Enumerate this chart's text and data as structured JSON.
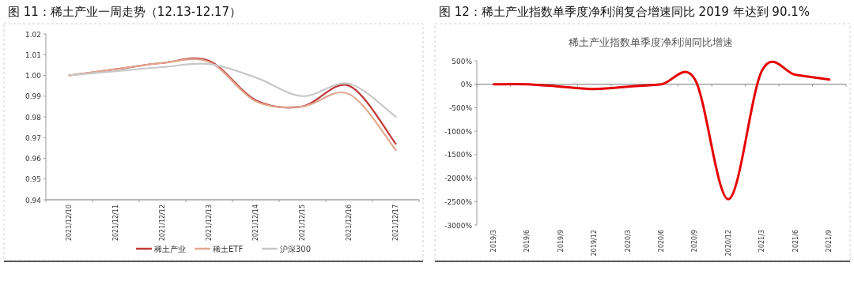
{
  "chart_data": [
    {
      "type": "line",
      "title": "图 11：稀土产业一周走势（12.13-12.17）",
      "categories": [
        "2021/12/10",
        "2021/12/11",
        "2021/12/12",
        "2021/12/13",
        "2021/12/14",
        "2021/12/15",
        "2021/12/16",
        "2021/12/17"
      ],
      "series": [
        {
          "name": "稀土产业",
          "color": "#c0393b",
          "values": [
            1.0,
            1.003,
            1.006,
            1.007,
            0.988,
            0.985,
            0.995,
            0.967
          ]
        },
        {
          "name": "稀土ETF",
          "color": "#e0a890",
          "values": [
            1.0,
            1.003,
            1.006,
            1.0065,
            0.9875,
            0.985,
            0.991,
            0.964
          ]
        },
        {
          "name": "沪深300",
          "color": "#c8c8c8",
          "values": [
            1.0,
            1.002,
            1.004,
            1.0055,
            0.999,
            0.99,
            0.996,
            0.98
          ]
        }
      ],
      "ylim": [
        0.94,
        1.02
      ],
      "yticks": [
        0.94,
        0.95,
        0.96,
        0.97,
        0.98,
        0.99,
        {
          "value": 1.0,
          "label": "1.00"
        },
        1.01,
        1.02
      ],
      "legend": "bottom",
      "grid": false
    },
    {
      "type": "line",
      "title": "图 12：稀土产业指数单季度净利润复合增速同比 2019 年达到 90.1%",
      "subtitle": "稀土产业指数单季度净利润同比增速",
      "categories": [
        "2019/3",
        "2019/6",
        "2019/9",
        "2019/12",
        "2020/3",
        "2020/6",
        "2020/9",
        "2020/12",
        "2021/3",
        "2021/6",
        "2021/9"
      ],
      "series": [
        {
          "color": "#e60000",
          "values": [
            0,
            0,
            -50,
            -100,
            -50,
            0,
            100,
            -2450,
            300,
            200,
            100
          ]
        }
      ],
      "ylim": [
        -3000,
        500
      ],
      "yticks": [
        {
          "value": -3000,
          "label": "-3000%"
        },
        {
          "value": -2500,
          "label": "-2500%"
        },
        {
          "value": -2000,
          "label": "-2000%"
        },
        {
          "value": -1500,
          "label": "-1500%"
        },
        {
          "value": -1000,
          "label": "-1000%"
        },
        {
          "value": -500,
          "label": "-500%"
        },
        {
          "value": 0,
          "label": "0%"
        },
        {
          "value": 500,
          "label": "500%"
        }
      ]
    }
  ]
}
